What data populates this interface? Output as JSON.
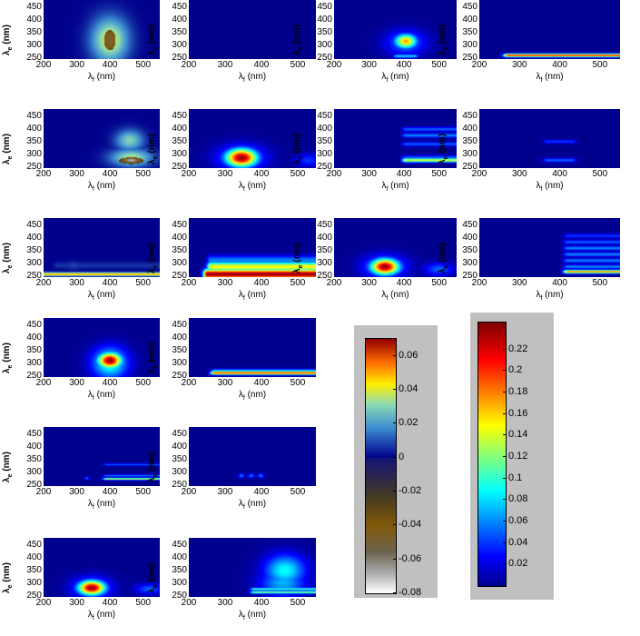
{
  "chart_data": {
    "type": "heatmap",
    "xlabel": "λf (nm)",
    "ylabel": "λe (nm)",
    "x_ticks": [
      "200",
      "300",
      "400",
      "500"
    ],
    "y_ticks": [
      "450",
      "400",
      "350",
      "300",
      "250"
    ],
    "xlim": [
      200,
      550
    ],
    "ylim": [
      245,
      480
    ],
    "panels": [
      {
        "id": "r1c1",
        "colormap": "diverging",
        "blobs": [
          {
            "x": 400,
            "y": 320,
            "sx": 22,
            "sy": 45,
            "v": -0.05
          },
          {
            "x": 400,
            "y": 320,
            "sx": 40,
            "sy": 65,
            "v": 0.04
          }
        ]
      },
      {
        "id": "r1c2",
        "colormap": "diverging",
        "blobs": []
      },
      {
        "id": "r1c3",
        "colormap": "sequential",
        "blobs": [
          {
            "x": 405,
            "y": 315,
            "sx": 22,
            "sy": 20,
            "v": 0.17
          },
          {
            "x": 405,
            "y": 310,
            "sx": 40,
            "sy": 35,
            "v": 0.06
          }
        ],
        "bands": [
          {
            "y": 255,
            "x0": 380,
            "x1": 430,
            "v": 0.08
          }
        ]
      },
      {
        "id": "r1c4",
        "colormap": "sequential",
        "bands": [
          {
            "y": 258,
            "x0": 270,
            "x1": 550,
            "v": 0.2,
            "w": 5
          }
        ]
      },
      {
        "id": "r2c1",
        "colormap": "diverging",
        "blobs": [
          {
            "x": 465,
            "y": 275,
            "sx": 25,
            "sy": 10,
            "v": -0.07
          },
          {
            "x": 465,
            "y": 285,
            "sx": 45,
            "sy": 25,
            "v": 0.035
          },
          {
            "x": 460,
            "y": 355,
            "sx": 30,
            "sy": 30,
            "v": 0.03
          }
        ]
      },
      {
        "id": "r2c2",
        "colormap": "sequential",
        "blobs": [
          {
            "x": 345,
            "y": 285,
            "sx": 30,
            "sy": 25,
            "v": 0.24
          },
          {
            "x": 345,
            "y": 285,
            "sx": 45,
            "sy": 35,
            "v": 0.08
          },
          {
            "x": 530,
            "y": 275,
            "sx": 25,
            "sy": 18,
            "v": 0.04
          }
        ]
      },
      {
        "id": "r2c3",
        "colormap": "sequential",
        "bands": [
          {
            "y": 275,
            "x0": 405,
            "x1": 550,
            "v": 0.14,
            "w": 6
          },
          {
            "y": 285,
            "x0": 405,
            "x1": 550,
            "v": 0.05,
            "w": 7
          },
          {
            "y": 340,
            "x0": 405,
            "x1": 550,
            "v": 0.05,
            "w": 6
          },
          {
            "y": 375,
            "x0": 405,
            "x1": 550,
            "v": 0.06,
            "w": 6
          },
          {
            "y": 400,
            "x0": 405,
            "x1": 550,
            "v": 0.05,
            "w": 6
          }
        ]
      },
      {
        "id": "r2c4",
        "colormap": "sequential",
        "bands": [
          {
            "y": 275,
            "x0": 370,
            "x1": 430,
            "v": 0.05,
            "w": 6
          },
          {
            "y": 350,
            "x0": 370,
            "x1": 430,
            "v": 0.04,
            "w": 5
          }
        ]
      },
      {
        "id": "r3c1",
        "colormap": "diverging",
        "blobs": [
          {
            "x": 290,
            "y": 290,
            "sx": 20,
            "sy": 12,
            "v": 0.008
          },
          {
            "x": 400,
            "y": 290,
            "sx": 50,
            "sy": 10,
            "v": 0.004
          }
        ],
        "bands": [
          {
            "y": 255,
            "x0": 200,
            "x1": 550,
            "v": 0.05,
            "w": 5
          },
          {
            "y": 290,
            "x0": 240,
            "x1": 550,
            "v": 0.006,
            "w": 10
          }
        ]
      },
      {
        "id": "r3c2",
        "colormap": "sequential",
        "bands": [
          {
            "y": 255,
            "x0": 250,
            "x1": 550,
            "v": 0.24,
            "w": 14
          },
          {
            "y": 285,
            "x0": 260,
            "x1": 550,
            "v": 0.15,
            "w": 14
          },
          {
            "y": 310,
            "x0": 260,
            "x1": 550,
            "v": 0.06,
            "w": 14
          }
        ]
      },
      {
        "id": "r3c3",
        "colormap": "sequential",
        "blobs": [
          {
            "x": 345,
            "y": 285,
            "sx": 28,
            "sy": 22,
            "v": 0.24
          },
          {
            "x": 345,
            "y": 285,
            "sx": 42,
            "sy": 32,
            "v": 0.08
          },
          {
            "x": 500,
            "y": 275,
            "sx": 30,
            "sy": 18,
            "v": 0.05
          }
        ]
      },
      {
        "id": "r3c4",
        "colormap": "sequential",
        "bands": [
          {
            "y": 265,
            "x0": 420,
            "x1": 550,
            "v": 0.18,
            "w": 5
          },
          {
            "y": 285,
            "x0": 420,
            "x1": 550,
            "v": 0.06,
            "w": 6
          },
          {
            "y": 310,
            "x0": 420,
            "x1": 550,
            "v": 0.06,
            "w": 6
          },
          {
            "y": 335,
            "x0": 420,
            "x1": 550,
            "v": 0.06,
            "w": 6
          },
          {
            "y": 360,
            "x0": 420,
            "x1": 550,
            "v": 0.06,
            "w": 6
          },
          {
            "y": 385,
            "x0": 420,
            "x1": 550,
            "v": 0.05,
            "w": 6
          },
          {
            "y": 410,
            "x0": 420,
            "x1": 550,
            "v": 0.04,
            "w": 6
          }
        ]
      },
      {
        "id": "r4c1",
        "colormap": "sequential",
        "blobs": [
          {
            "x": 400,
            "y": 310,
            "sx": 25,
            "sy": 22,
            "v": 0.24
          },
          {
            "x": 400,
            "y": 300,
            "sx": 38,
            "sy": 45,
            "v": 0.1
          }
        ]
      },
      {
        "id": "r4c2",
        "colormap": "sequential",
        "bands": [
          {
            "y": 260,
            "x0": 270,
            "x1": 550,
            "v": 0.2,
            "w": 5
          },
          {
            "y": 268,
            "x0": 270,
            "x1": 550,
            "v": 0.08,
            "w": 5
          }
        ]
      },
      {
        "id": "r5c1",
        "colormap": "sequential",
        "bands": [
          {
            "y": 272,
            "x0": 390,
            "x1": 550,
            "v": 0.14,
            "w": 3
          },
          {
            "y": 285,
            "x0": 390,
            "x1": 550,
            "v": 0.06,
            "w": 3
          },
          {
            "y": 330,
            "x0": 390,
            "x1": 550,
            "v": 0.05,
            "w": 3
          }
        ],
        "blobs": [
          {
            "x": 330,
            "y": 275,
            "sx": 5,
            "sy": 4,
            "v": 0.06
          }
        ]
      },
      {
        "id": "r5c2",
        "colormap": "sequential",
        "blobs": [
          {
            "x": 345,
            "y": 285,
            "sx": 6,
            "sy": 6,
            "v": 0.06
          },
          {
            "x": 372,
            "y": 285,
            "sx": 6,
            "sy": 6,
            "v": 0.06
          },
          {
            "x": 398,
            "y": 285,
            "sx": 6,
            "sy": 6,
            "v": 0.06
          }
        ]
      },
      {
        "id": "r6c1",
        "colormap": "sequential",
        "blobs": [
          {
            "x": 345,
            "y": 280,
            "sx": 28,
            "sy": 20,
            "v": 0.24
          },
          {
            "x": 345,
            "y": 280,
            "sx": 40,
            "sy": 30,
            "v": 0.08
          },
          {
            "x": 520,
            "y": 275,
            "sx": 30,
            "sy": 15,
            "v": 0.05
          }
        ]
      },
      {
        "id": "r6c2",
        "colormap": "sequential",
        "blobs": [
          {
            "x": 465,
            "y": 350,
            "sx": 40,
            "sy": 45,
            "v": 0.09
          },
          {
            "x": 460,
            "y": 300,
            "sx": 45,
            "sy": 40,
            "v": 0.07
          }
        ],
        "bands": [
          {
            "y": 262,
            "x0": 380,
            "x1": 550,
            "v": 0.12,
            "w": 4
          },
          {
            "y": 275,
            "x0": 380,
            "x1": 550,
            "v": 0.1,
            "w": 4
          }
        ]
      }
    ],
    "colorbars": [
      {
        "id": "diverging",
        "ticks": [
          "0.06",
          "0.04",
          "0.02",
          "0",
          "-0.02",
          "-0.04",
          "-0.06",
          "-0.08"
        ],
        "values": [
          0.06,
          0.04,
          0.02,
          0,
          -0.02,
          -0.04,
          -0.06,
          -0.08
        ],
        "range": [
          -0.08,
          0.07
        ]
      },
      {
        "id": "sequential",
        "ticks": [
          "0.22",
          "0.2",
          "0.18",
          "0.16",
          "0.14",
          "0.12",
          "0.1",
          "0.08",
          "0.06",
          "0.04",
          "0.02"
        ],
        "values": [
          0.22,
          0.2,
          0.18,
          0.16,
          0.14,
          0.12,
          0.1,
          0.08,
          0.06,
          0.04,
          0.02
        ],
        "range": [
          0,
          0.245
        ]
      }
    ]
  }
}
